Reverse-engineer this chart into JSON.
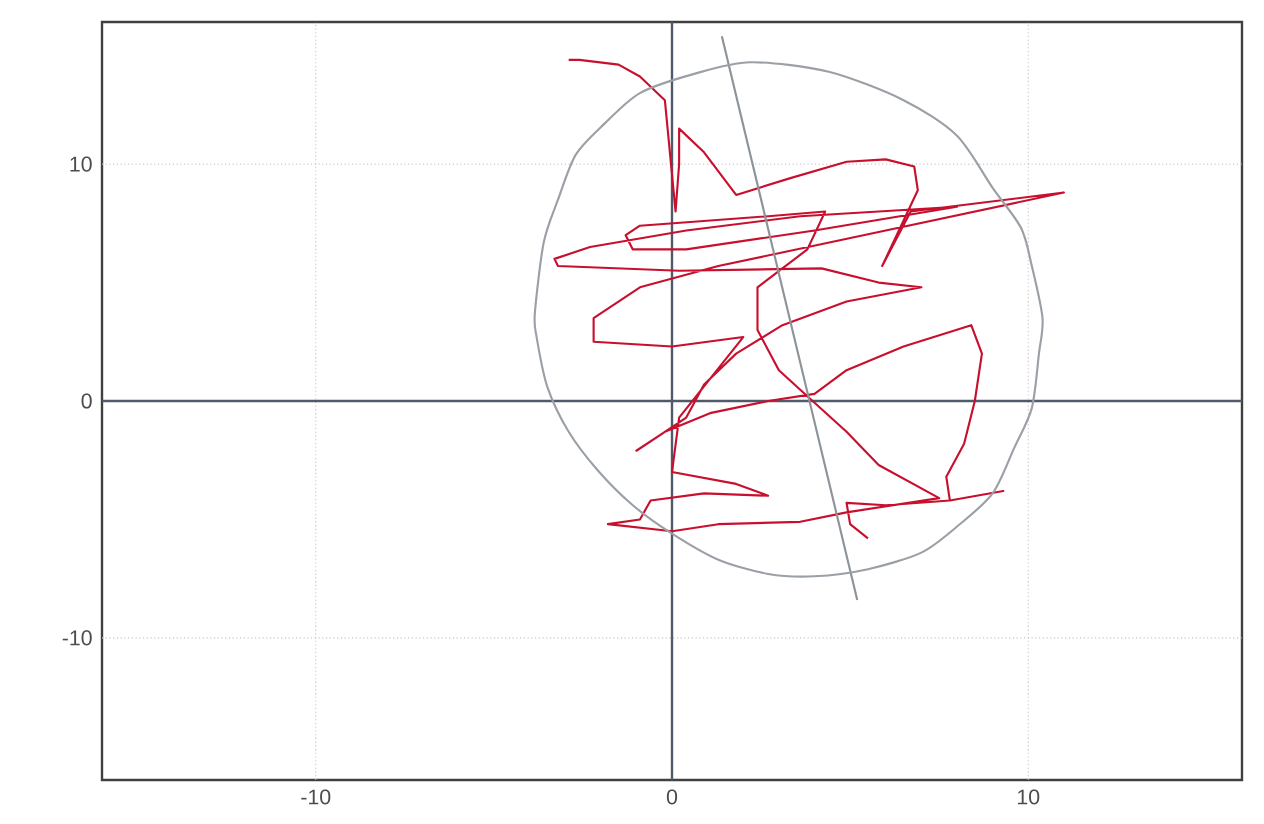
{
  "chart_data": {
    "type": "line",
    "xlim": [
      -16,
      16
    ],
    "ylim": [
      -16,
      16
    ],
    "xticks": [
      -10,
      0,
      10
    ],
    "yticks": [
      -10,
      0,
      10
    ],
    "grid": true,
    "marker": "none",
    "line_style": "solid",
    "series": [
      {
        "color": "#c8102e",
        "x": [
          5.5,
          5.0,
          4.9,
          6.0,
          7.8,
          9.3,
          7.8,
          7.7,
          8.2,
          8.5,
          8.7,
          8.4,
          6.5,
          4.9,
          4.0,
          2.7,
          1.1,
          -0.2,
          -1.0,
          -0.4,
          0.4,
          0.9,
          1.8,
          3.1,
          4.9,
          7.0,
          5.8,
          4.2,
          0.2,
          -3.2,
          -3.3,
          -2.3,
          0.4,
          3.6,
          8.0,
          4.0,
          0.4,
          -1.1,
          -1.3,
          -0.9,
          2.7,
          4.3,
          3.8,
          2.4,
          2.4,
          3.0,
          3.8,
          4.9,
          5.8,
          7.5,
          4.9,
          3.6,
          1.3,
          0.0,
          -1.8,
          -0.9,
          -0.6,
          0.9,
          2.7,
          1.8,
          0.0,
          0.2,
          2.0,
          0.0,
          -2.2,
          -2.2,
          -0.9,
          1.3,
          6.0,
          11.0,
          6.7,
          5.9,
          6.9,
          6.8,
          6.0,
          4.9,
          3.3,
          1.8,
          0.9,
          0.2,
          0.2,
          0.1,
          -0.2,
          -0.9,
          -1.5,
          -2.6,
          -2.9
        ],
        "values": [
          -5.8,
          -5.2,
          -4.3,
          -4.4,
          -4.2,
          -3.8,
          -4.2,
          -3.2,
          -1.8,
          0.0,
          2.0,
          3.2,
          2.3,
          1.3,
          0.3,
          0.0,
          -0.5,
          -1.3,
          -2.1,
          -1.5,
          -0.7,
          0.7,
          2.0,
          3.2,
          4.2,
          4.8,
          5.0,
          5.6,
          5.5,
          5.7,
          6.0,
          6.5,
          7.2,
          7.8,
          8.2,
          7.2,
          6.4,
          6.4,
          7.0,
          7.4,
          7.8,
          8.0,
          6.4,
          4.8,
          3.0,
          1.3,
          0.2,
          -1.3,
          -2.7,
          -4.1,
          -4.7,
          -5.1,
          -5.2,
          -5.5,
          -5.2,
          -5.0,
          -4.2,
          -3.9,
          -4.0,
          -3.5,
          -3.0,
          -0.7,
          2.7,
          2.3,
          2.5,
          3.5,
          4.8,
          5.7,
          7.2,
          8.8,
          8.0,
          5.7,
          8.9,
          9.9,
          10.2,
          10.1,
          9.4,
          8.7,
          10.5,
          11.5,
          10.0,
          8.0,
          12.7,
          13.7,
          14.2,
          14.4,
          14.4
        ]
      },
      {
        "color": "#8c9399",
        "x": [
          1.4,
          5.2
        ],
        "values": [
          15.4,
          -8.4
        ]
      }
    ]
  }
}
